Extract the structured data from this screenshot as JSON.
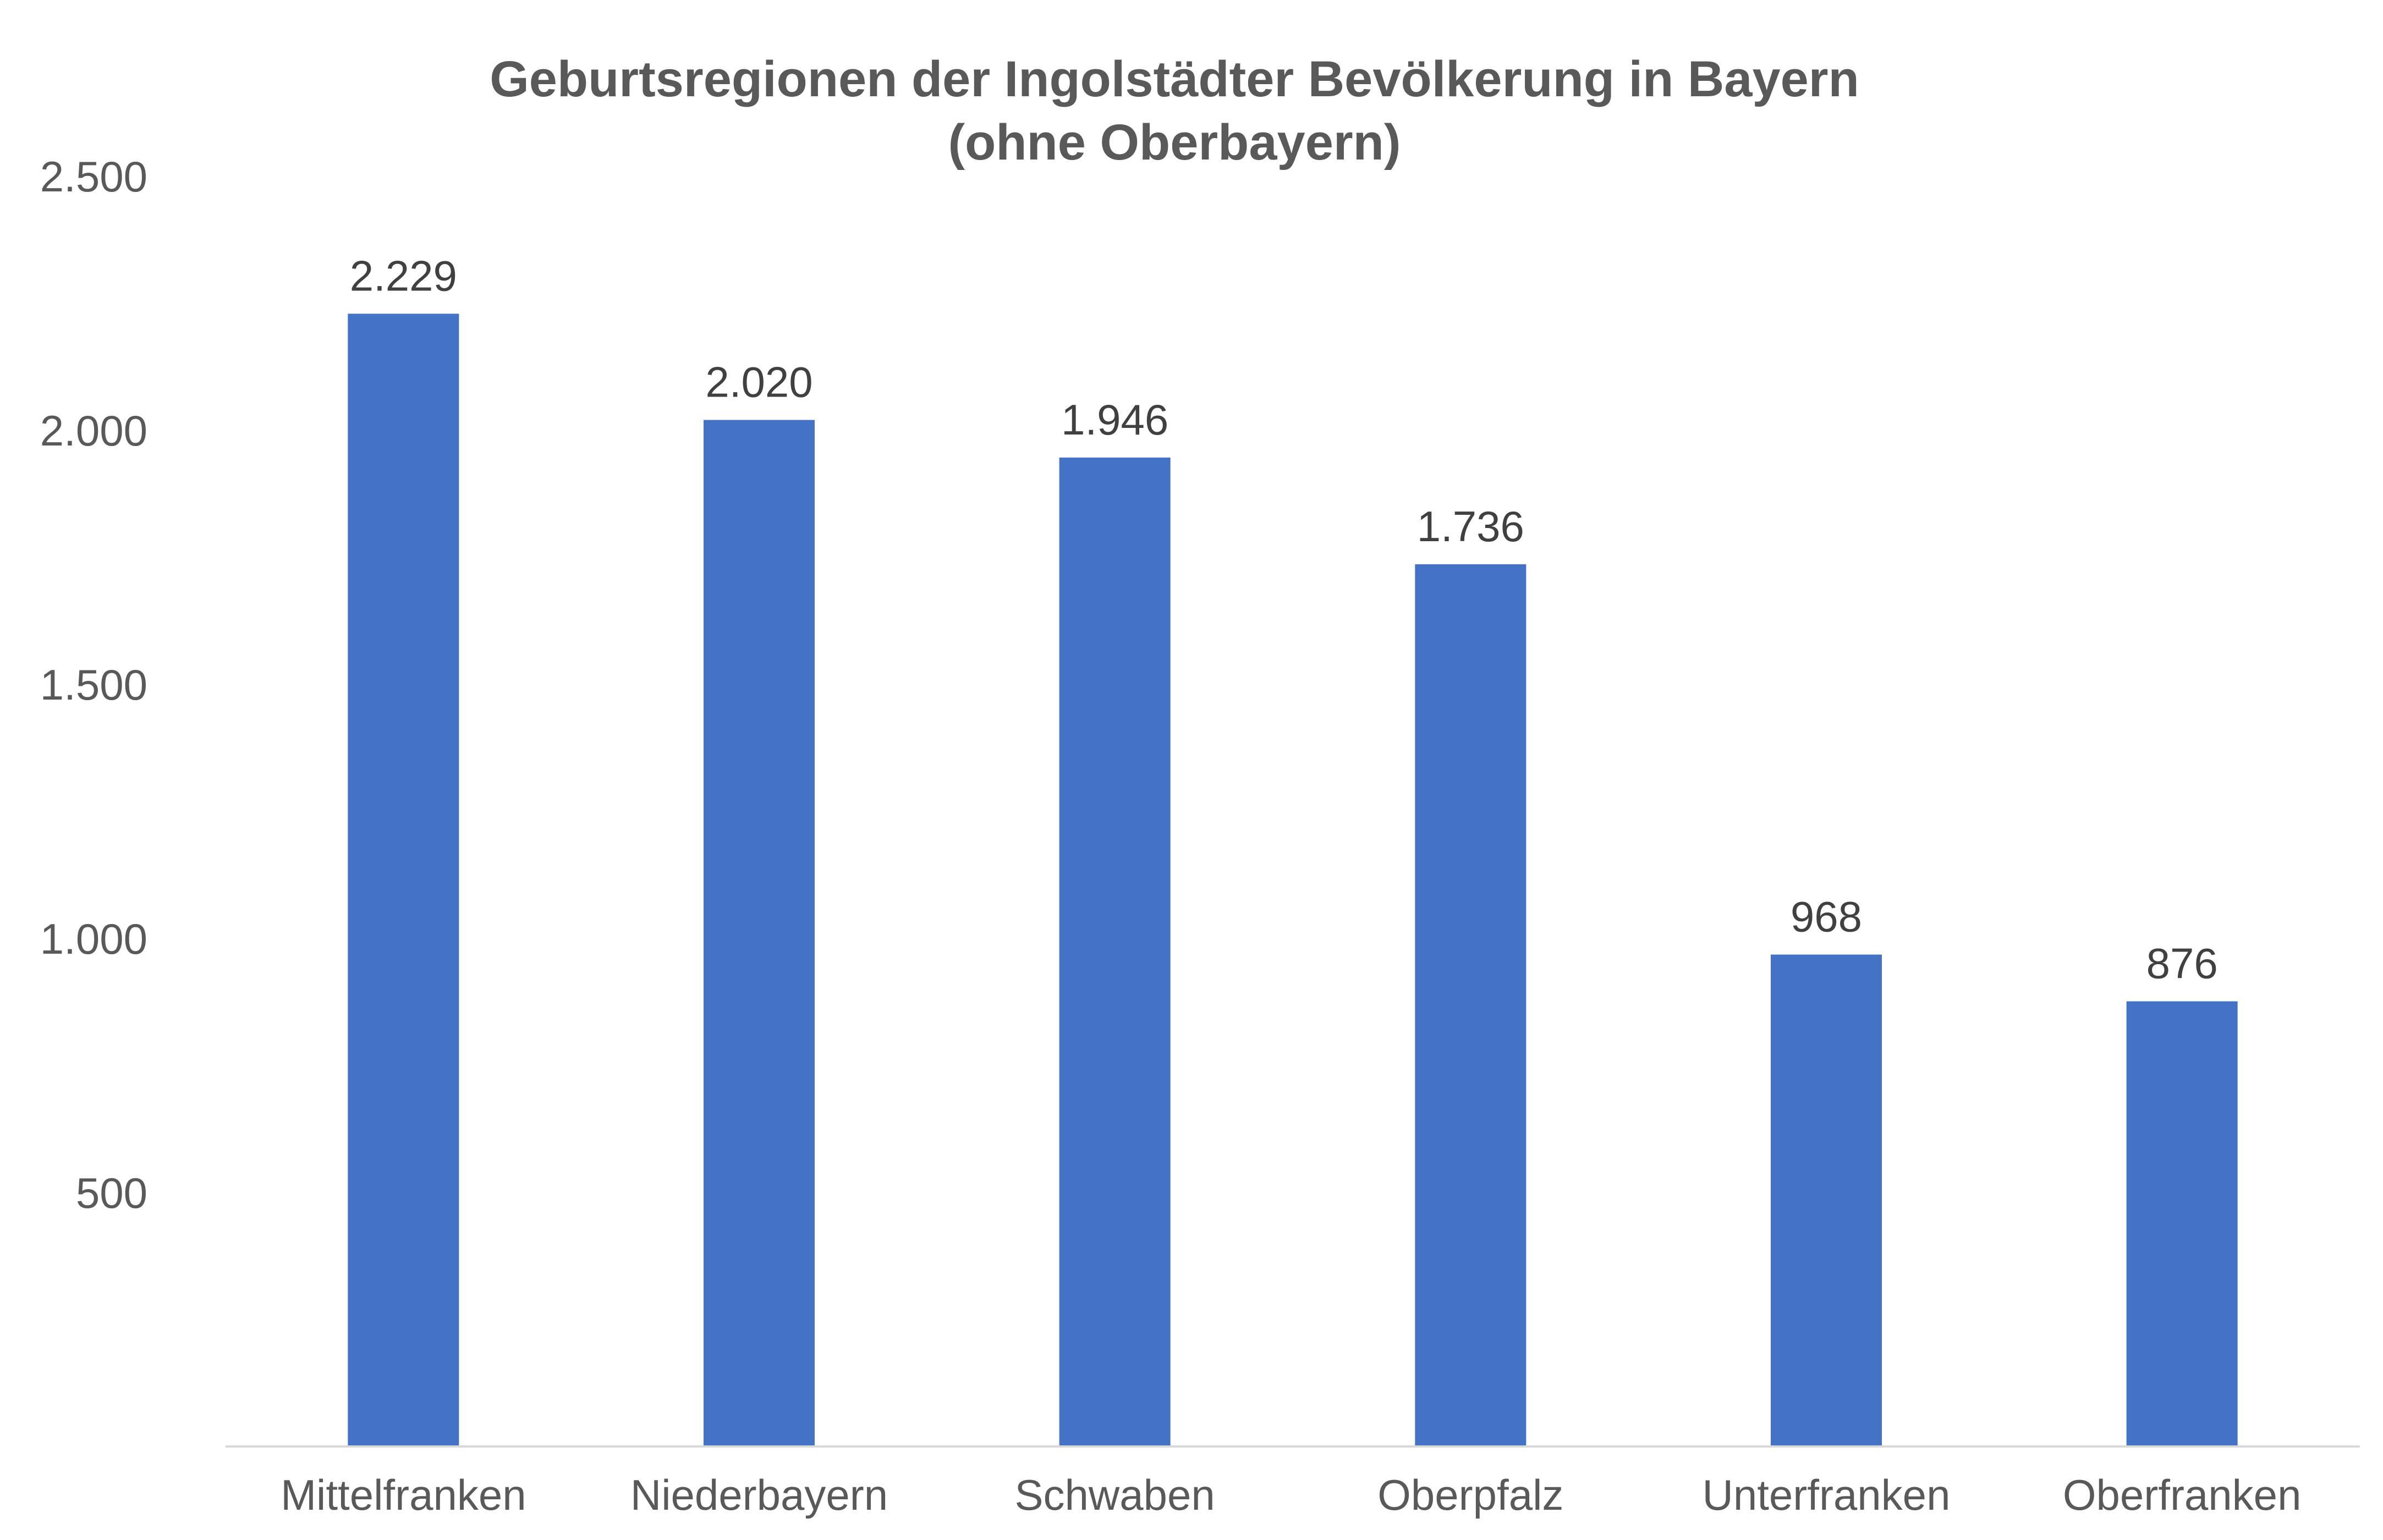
{
  "chart_data": {
    "type": "bar",
    "title": "Geburtsregionen der Ingolstädter Bevölkerung in Bayern",
    "subtitle": "(ohne Oberbayern)",
    "xlabel": "",
    "ylabel": "",
    "categories": [
      "Mittelfranken",
      "Niederbayern",
      "Schwaben",
      "Oberpfalz",
      "Unterfranken",
      "Oberfranken"
    ],
    "values": [
      2229,
      2020,
      1946,
      1736,
      968,
      876
    ],
    "data_labels": [
      "2.229",
      "2.020",
      "1.946",
      "1.736",
      "968",
      "876"
    ],
    "y_ticks": [
      500,
      1000,
      1500,
      2000,
      2500
    ],
    "y_tick_labels": [
      "500",
      "1.000",
      "1.500",
      "2.000",
      "2.500"
    ],
    "ylim": [
      0,
      2500
    ],
    "grid": false,
    "legend": "none",
    "colors": {
      "bar": "#4472C4",
      "axis": "#D9D9D9",
      "title": "#595959",
      "tick_text": "#595959",
      "data_label_text": "#404040"
    }
  }
}
